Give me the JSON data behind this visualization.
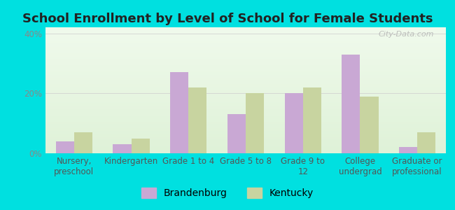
{
  "title": "School Enrollment by Level of School for Female Students",
  "categories": [
    "Nursery,\npreschool",
    "Kindergarten",
    "Grade 1 to 4",
    "Grade 5 to 8",
    "Grade 9 to\n12",
    "College\nundergrad",
    "Graduate or\nprofessional"
  ],
  "brandenburg": [
    4,
    3,
    27,
    13,
    20,
    33,
    2
  ],
  "kentucky": [
    7,
    5,
    22,
    20,
    22,
    19,
    7
  ],
  "bar_color_brandenburg": "#c9a8d4",
  "bar_color_kentucky": "#c8d4a0",
  "background_color": "#00e0e0",
  "ylim": [
    0,
    42
  ],
  "yticks": [
    0,
    20,
    40
  ],
  "ytick_labels": [
    "0%",
    "20%",
    "40%"
  ],
  "legend_labels": [
    "Brandenburg",
    "Kentucky"
  ],
  "title_fontsize": 13,
  "tick_fontsize": 8.5,
  "legend_fontsize": 10,
  "bar_width": 0.32
}
